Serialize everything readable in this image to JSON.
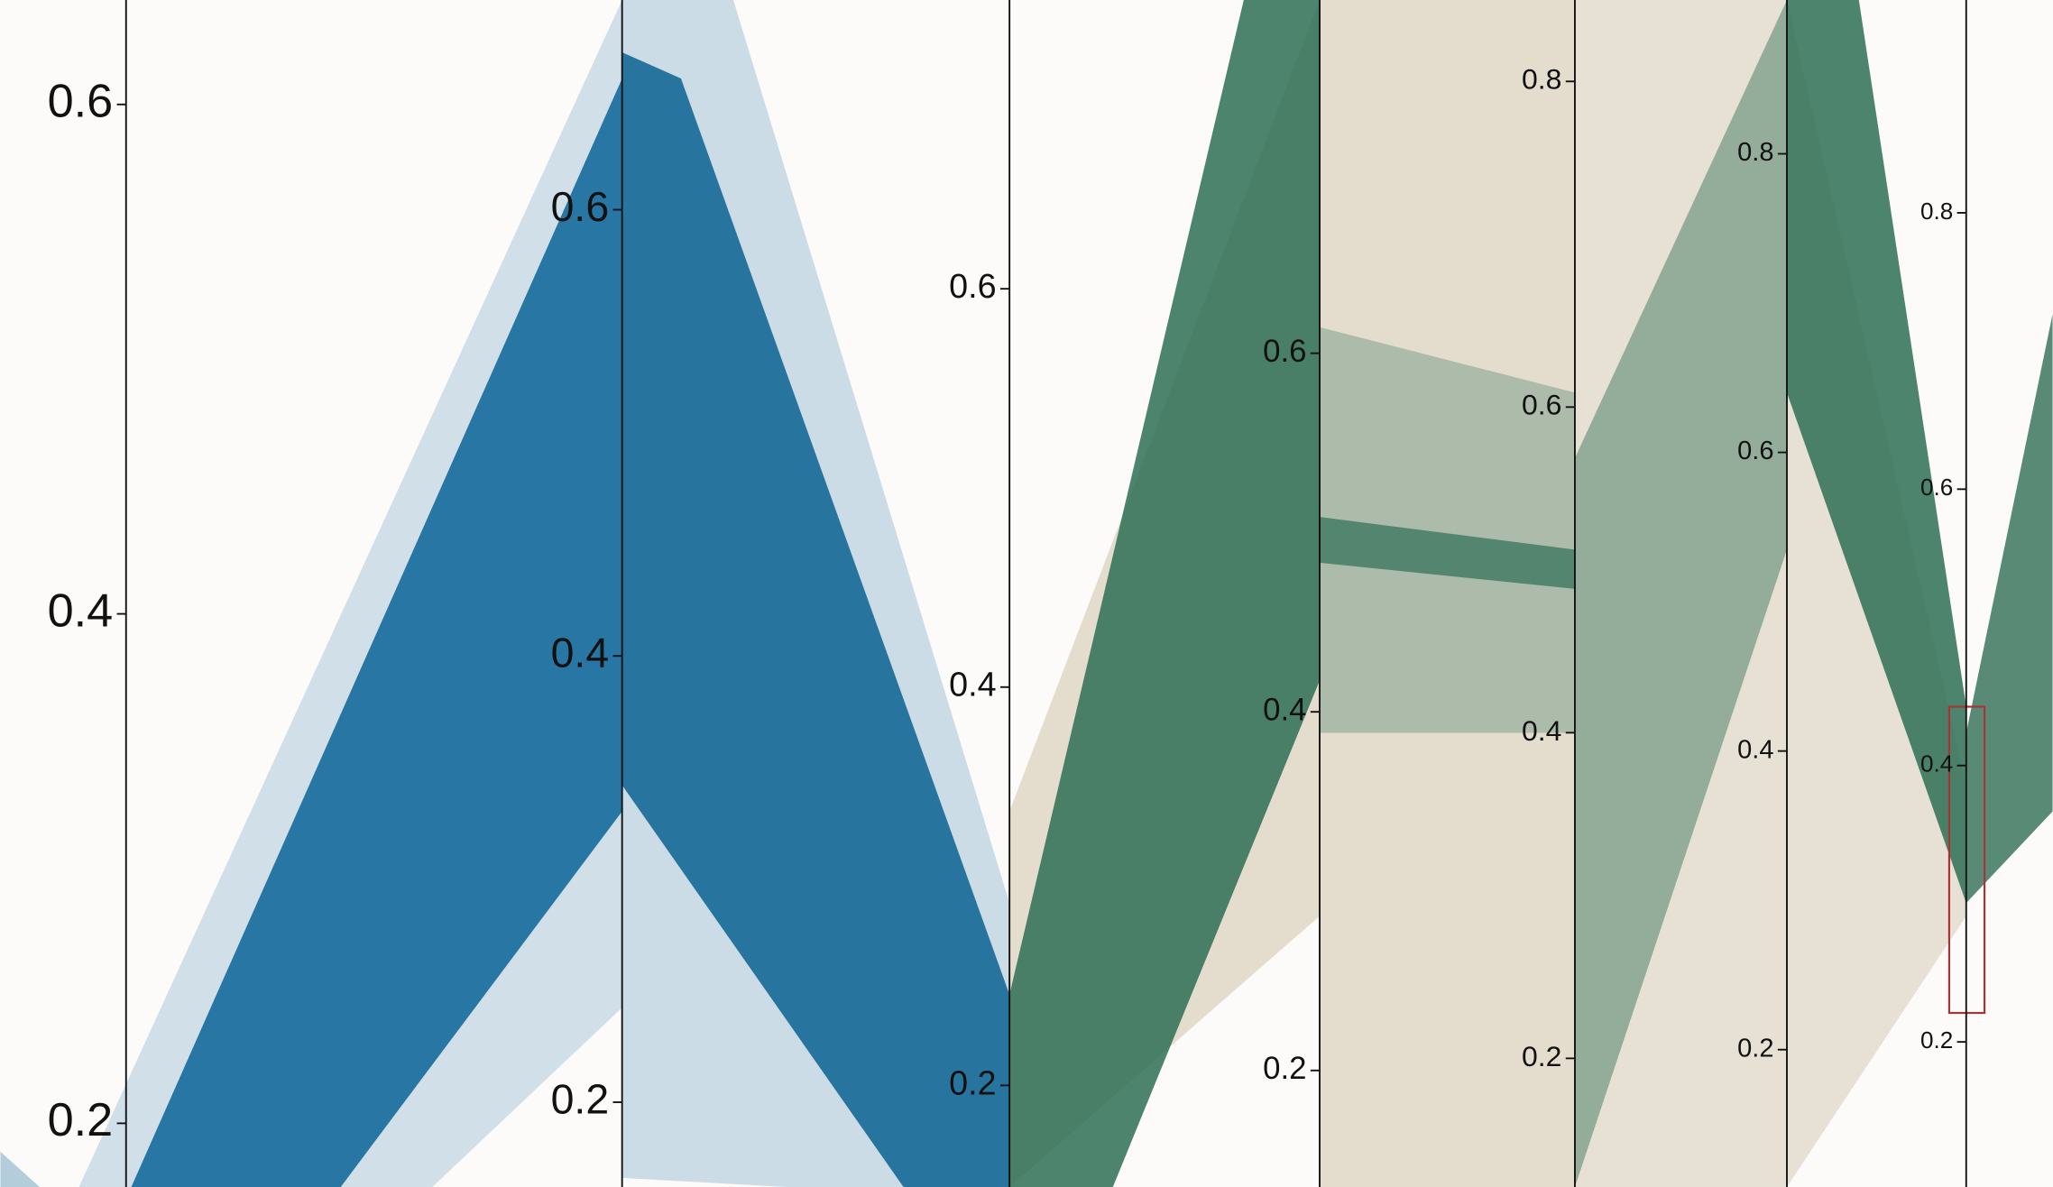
{
  "chart_data": {
    "type": "parallel",
    "axes": [
      {
        "ylim": [
          0.175,
          0.641
        ],
        "yticks": [
          0.2,
          0.4,
          0.6
        ]
      },
      {
        "ylim": [
          0.162,
          0.694
        ],
        "yticks": [
          0.2,
          0.4,
          0.6
        ]
      },
      {
        "ylim": [
          0.149,
          0.745
        ],
        "yticks": [
          0.2,
          0.4,
          0.6
        ]
      },
      {
        "ylim": [
          0.135,
          0.797
        ],
        "yticks": [
          0.2,
          0.4,
          0.6
        ]
      },
      {
        "ylim": [
          0.121,
          0.85
        ],
        "yticks": [
          0.2,
          0.4,
          0.6,
          0.8
        ]
      },
      {
        "ylim": [
          0.108,
          0.903
        ],
        "yticks": [
          0.2,
          0.4,
          0.6,
          0.8
        ]
      },
      {
        "ylim": [
          0.095,
          0.954
        ],
        "yticks": [
          0.2,
          0.4,
          0.6,
          0.8
        ]
      }
    ]
  }
}
